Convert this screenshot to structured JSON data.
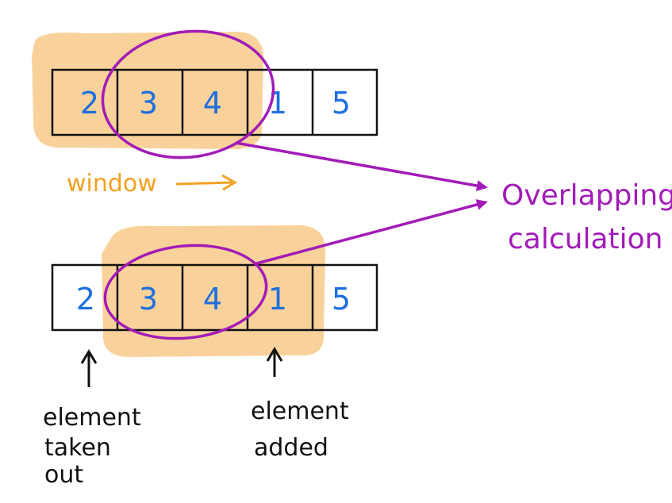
{
  "colors": {
    "highlight": "#f9d29b",
    "circle": "#a21bb8",
    "digits": "#1e6fe0",
    "window_label": "#f2a123",
    "ink": "#111111"
  },
  "top_array": {
    "cells": [
      "2",
      "3",
      "4",
      "1",
      "5"
    ],
    "window_label": "window",
    "window_arrow": "→"
  },
  "bottom_array": {
    "cells": [
      "2",
      "3",
      "4",
      "1",
      "5"
    ]
  },
  "overlap_label": {
    "line1": "Overlapping",
    "line2": "calculation"
  },
  "removed_note": {
    "line1": "element",
    "line2": "taken",
    "line3": "out"
  },
  "added_note": {
    "line1": "element",
    "line2": "added"
  }
}
